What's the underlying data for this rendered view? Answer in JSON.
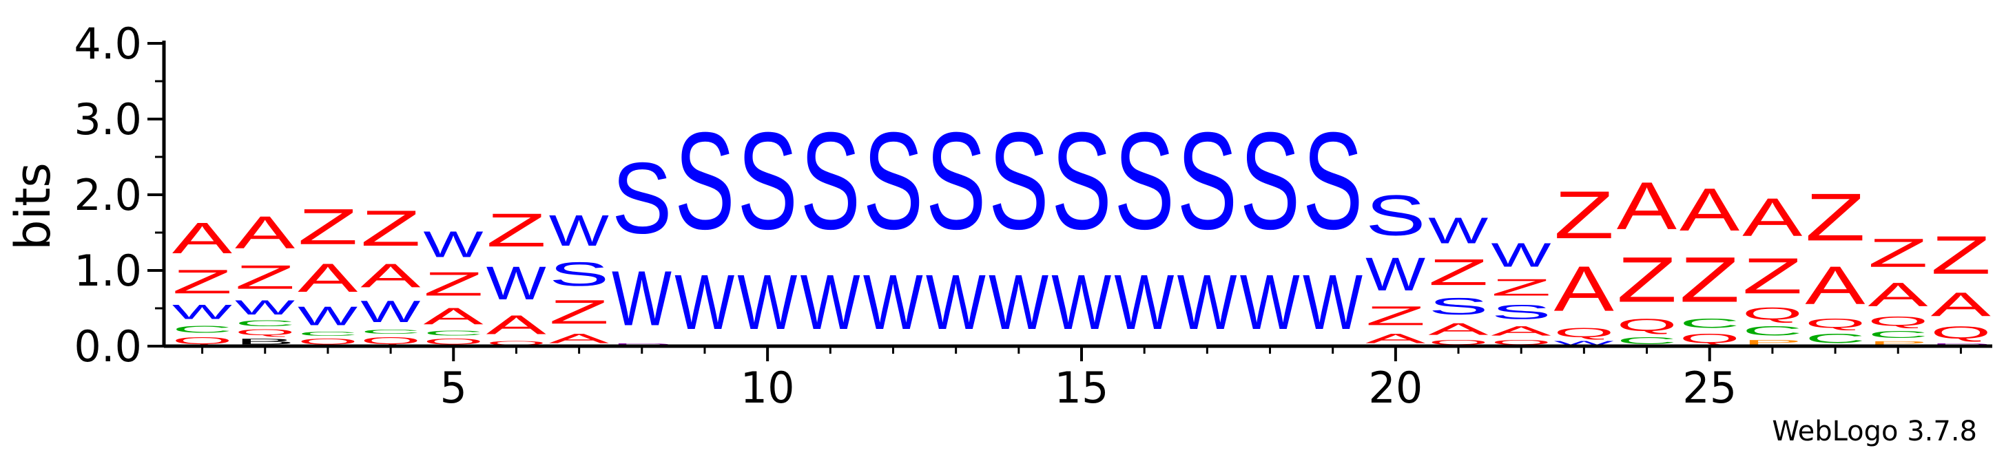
{
  "chart_data": {
    "type": "sequence-logo",
    "ylabel": "bits",
    "ylim": [
      0,
      4.0
    ],
    "y_ticks": [
      "0.0",
      "1.0",
      "2.0",
      "3.0",
      "4.0"
    ],
    "x_ticks": [
      5,
      10,
      15,
      20,
      25
    ],
    "footer": "WebLogo 3.7.8",
    "colors": {
      "A": "#ff0000",
      "Z": "#ff0000",
      "W": "#0000ff",
      "S": "#0000ff",
      "C": "#00aa00",
      "Q": "#ff0000",
      "P": "#ff8800",
      "D": "#8800aa"
    },
    "positions": [
      {
        "pos": 1,
        "stack": [
          [
            "Q",
            0.15
          ],
          [
            "C",
            0.15
          ],
          [
            "W",
            0.3
          ],
          [
            "Z",
            0.5
          ],
          [
            "A",
            0.65
          ]
        ]
      },
      {
        "pos": 2,
        "stack": [
          [
            "B",
            0.12
          ],
          [
            "Q",
            0.12
          ],
          [
            "C",
            0.12
          ],
          [
            "W",
            0.3
          ],
          [
            "Z",
            0.5
          ],
          [
            "A",
            0.68
          ]
        ]
      },
      {
        "pos": 3,
        "stack": [
          [
            "Q",
            0.12
          ],
          [
            "C",
            0.08
          ],
          [
            "W",
            0.4
          ],
          [
            "A",
            0.6
          ],
          [
            "Z",
            0.75
          ]
        ]
      },
      {
        "pos": 4,
        "stack": [
          [
            "Q",
            0.15
          ],
          [
            "C",
            0.08
          ],
          [
            "W",
            0.45
          ],
          [
            "A",
            0.5
          ],
          [
            "Z",
            0.75
          ]
        ]
      },
      {
        "pos": 5,
        "stack": [
          [
            "Q",
            0.12
          ],
          [
            "C",
            0.1
          ],
          [
            "A",
            0.35
          ],
          [
            "Z",
            0.5
          ],
          [
            "W",
            0.55
          ]
        ]
      },
      {
        "pos": 6,
        "stack": [
          [
            "Q",
            0.08
          ],
          [
            "A",
            0.4
          ],
          [
            "W",
            0.7
          ],
          [
            "Z",
            0.7
          ]
        ]
      },
      {
        "pos": 7,
        "stack": [
          [
            "A",
            0.2
          ],
          [
            "Z",
            0.5
          ],
          [
            "S",
            0.5
          ],
          [
            "W",
            0.65
          ]
        ]
      },
      {
        "pos": 8,
        "stack": [
          [
            "D",
            0.05
          ],
          [
            "W",
            1.15
          ],
          [
            "S",
            1.5
          ]
        ]
      },
      {
        "pos": 9,
        "stack": [
          [
            "W",
            1.15
          ],
          [
            "S",
            2.05
          ]
        ]
      },
      {
        "pos": 10,
        "stack": [
          [
            "W",
            1.15
          ],
          [
            "S",
            2.05
          ]
        ]
      },
      {
        "pos": 11,
        "stack": [
          [
            "W",
            1.15
          ],
          [
            "S",
            2.05
          ]
        ]
      },
      {
        "pos": 12,
        "stack": [
          [
            "W",
            1.15
          ],
          [
            "S",
            2.05
          ]
        ]
      },
      {
        "pos": 13,
        "stack": [
          [
            "W",
            1.15
          ],
          [
            "S",
            2.05
          ]
        ]
      },
      {
        "pos": 14,
        "stack": [
          [
            "W",
            1.15
          ],
          [
            "S",
            2.05
          ]
        ]
      },
      {
        "pos": 15,
        "stack": [
          [
            "W",
            1.15
          ],
          [
            "S",
            2.05
          ]
        ]
      },
      {
        "pos": 16,
        "stack": [
          [
            "W",
            1.15
          ],
          [
            "S",
            2.05
          ]
        ]
      },
      {
        "pos": 17,
        "stack": [
          [
            "W",
            1.15
          ],
          [
            "S",
            2.05
          ]
        ]
      },
      {
        "pos": 18,
        "stack": [
          [
            "W",
            1.15
          ],
          [
            "S",
            2.05
          ]
        ]
      },
      {
        "pos": 19,
        "stack": [
          [
            "W",
            1.15
          ],
          [
            "S",
            2.05
          ]
        ]
      },
      {
        "pos": 20,
        "stack": [
          [
            "A",
            0.2
          ],
          [
            "Z",
            0.4
          ],
          [
            "W",
            0.7
          ],
          [
            "S",
            0.85
          ]
        ]
      },
      {
        "pos": 21,
        "stack": [
          [
            "Q",
            0.1
          ],
          [
            "A",
            0.25
          ],
          [
            "S",
            0.35
          ],
          [
            "Z",
            0.55
          ],
          [
            "W",
            0.55
          ]
        ]
      },
      {
        "pos": 22,
        "stack": [
          [
            "Q",
            0.1
          ],
          [
            "A",
            0.2
          ],
          [
            "S",
            0.3
          ],
          [
            "Z",
            0.35
          ],
          [
            "W",
            0.5
          ]
        ]
      },
      {
        "pos": 23,
        "stack": [
          [
            "W",
            0.08
          ],
          [
            "Q",
            0.2
          ],
          [
            "A",
            0.95
          ],
          [
            "Z",
            1.0
          ]
        ]
      },
      {
        "pos": 24,
        "stack": [
          [
            "C",
            0.15
          ],
          [
            "Q",
            0.25
          ],
          [
            "Z",
            0.95
          ],
          [
            "A",
            1.0
          ]
        ]
      },
      {
        "pos": 25,
        "stack": [
          [
            "Q",
            0.2
          ],
          [
            "C",
            0.2
          ],
          [
            "Z",
            0.95
          ],
          [
            "A",
            0.9
          ]
        ]
      },
      {
        "pos": 26,
        "stack": [
          [
            "P",
            0.1
          ],
          [
            "C",
            0.2
          ],
          [
            "Q",
            0.25
          ],
          [
            "Z",
            0.75
          ],
          [
            "A",
            0.8
          ]
        ]
      },
      {
        "pos": 27,
        "stack": [
          [
            "C",
            0.2
          ],
          [
            "Q",
            0.2
          ],
          [
            "A",
            0.8
          ],
          [
            "Z",
            1.0
          ]
        ]
      },
      {
        "pos": 28,
        "stack": [
          [
            "P",
            0.08
          ],
          [
            "C",
            0.15
          ],
          [
            "Q",
            0.2
          ],
          [
            "A",
            0.5
          ],
          [
            "Z",
            0.6
          ]
        ]
      },
      {
        "pos": 29,
        "stack": [
          [
            "D",
            0.05
          ],
          [
            "Q",
            0.25
          ],
          [
            "A",
            0.5
          ],
          [
            "Z",
            0.8
          ]
        ]
      }
    ]
  }
}
